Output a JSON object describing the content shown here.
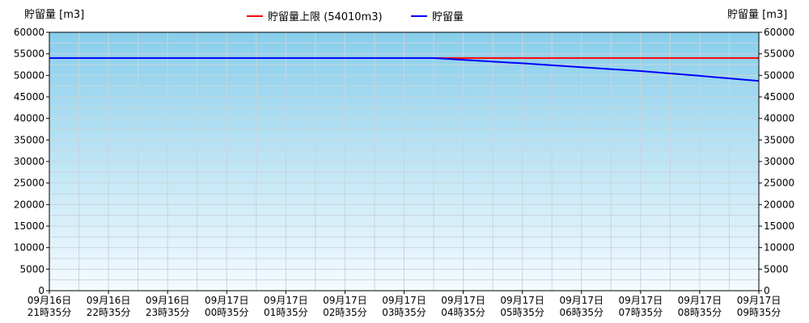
{
  "colors": {
    "upper_limit": "#ff0000",
    "storage": "#0000ff",
    "plot_bg_top": "#87ceeb",
    "plot_bg_bottom": "#f5fbff",
    "grid": "#c8d4dc"
  },
  "chart_data": {
    "type": "line",
    "ylabel_left": "貯留量 [m3]",
    "ylabel_right": "貯留量 [m3]",
    "ylim": [
      0,
      60000
    ],
    "yticks": [
      0,
      5000,
      10000,
      15000,
      20000,
      25000,
      30000,
      35000,
      40000,
      45000,
      50000,
      55000,
      60000
    ],
    "grid": true,
    "legend_position": "top-center",
    "categories": [
      [
        "09月16日",
        "21時35分"
      ],
      [
        "09月16日",
        "22時35分"
      ],
      [
        "09月16日",
        "23時35分"
      ],
      [
        "09月17日",
        "00時35分"
      ],
      [
        "09月17日",
        "01時35分"
      ],
      [
        "09月17日",
        "02時35分"
      ],
      [
        "09月17日",
        "03時35分"
      ],
      [
        "09月17日",
        "04時35分"
      ],
      [
        "09月17日",
        "05時35分"
      ],
      [
        "09月17日",
        "06時35分"
      ],
      [
        "09月17日",
        "07時35分"
      ],
      [
        "09月17日",
        "08時35分"
      ],
      [
        "09月17日",
        "09時35分"
      ]
    ],
    "series": [
      {
        "name": "貯留量上限 (54010m3)",
        "color": "#ff0000",
        "points": [
          [
            6.5,
            54010
          ],
          [
            12,
            54010
          ]
        ]
      },
      {
        "name": "貯留量",
        "color": "#0000ff",
        "points": [
          [
            0,
            54010
          ],
          [
            6.5,
            54010
          ],
          [
            7,
            53600
          ],
          [
            8,
            52800
          ],
          [
            9,
            51900
          ],
          [
            10,
            51000
          ],
          [
            11,
            49900
          ],
          [
            12,
            48700
          ]
        ]
      }
    ]
  }
}
